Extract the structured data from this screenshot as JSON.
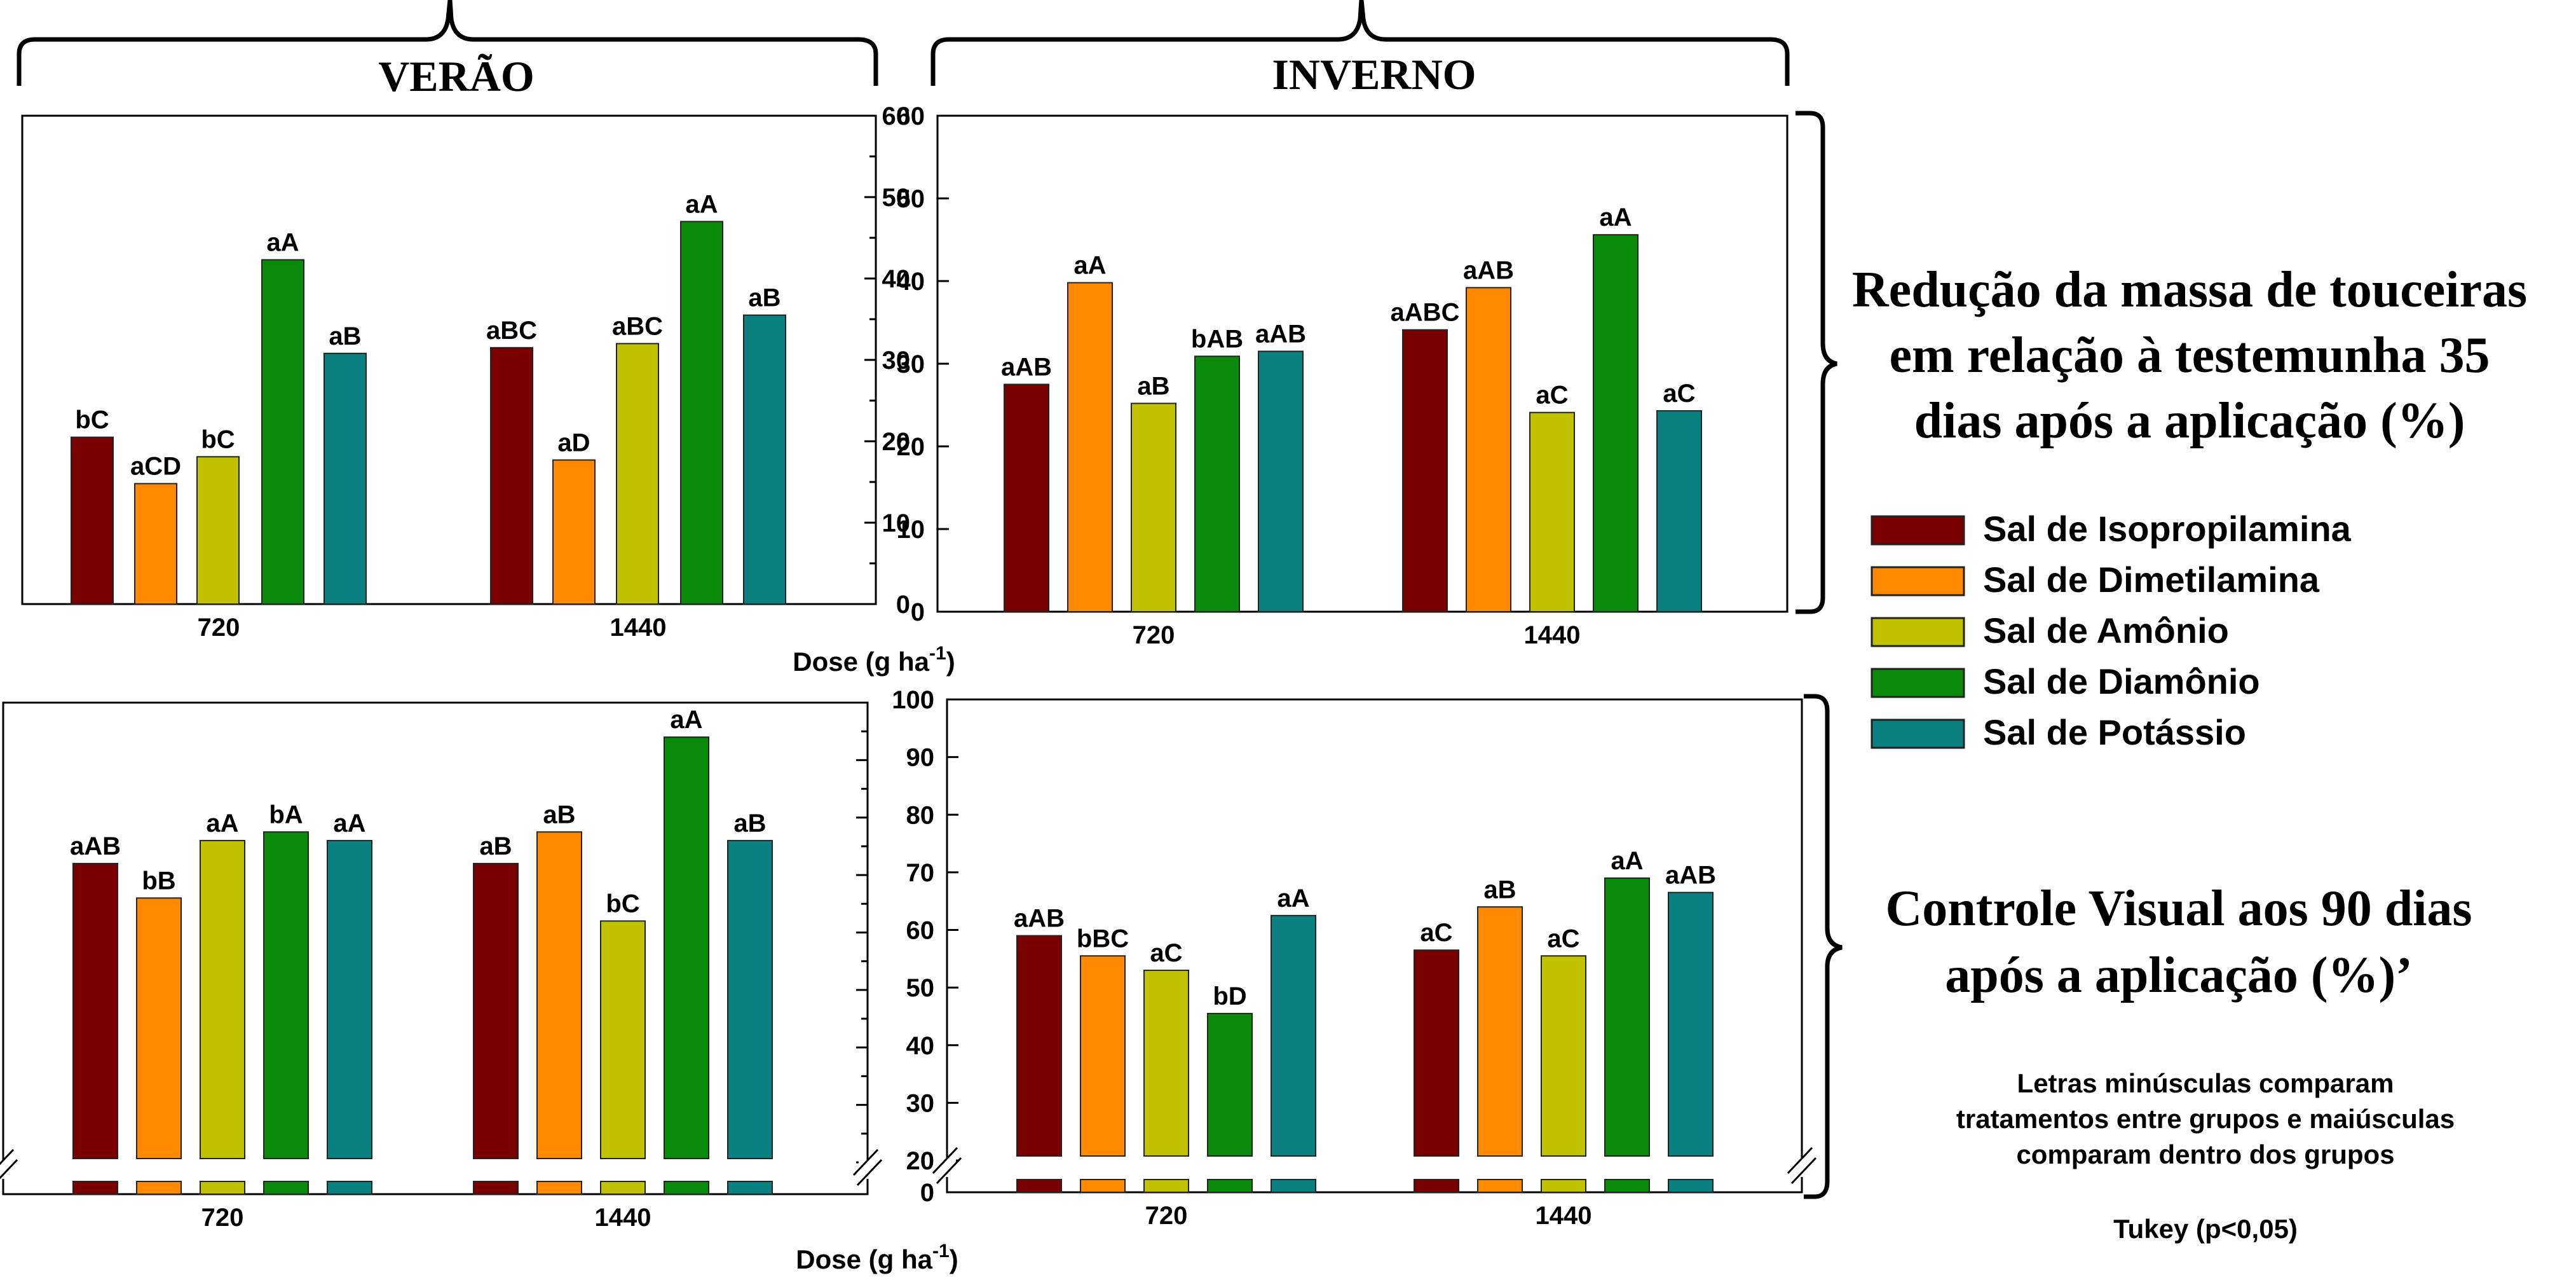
{
  "headers": {
    "verao": "VERÃO",
    "inverno": "INVERNO"
  },
  "side_labels": {
    "top": [
      "Redução da massa de touceiras",
      "em relação à testemunha 35",
      "dias após a aplicação (%)"
    ],
    "bottom": [
      "Controle Visual aos 90 dias",
      "após a aplicação (%)’"
    ]
  },
  "legend": {
    "items": [
      {
        "label": "Sal de Isopropilamina",
        "color": "#7a0000"
      },
      {
        "label": "Sal de Dimetilamina",
        "color": "#ff8a00"
      },
      {
        "label": "Sal de Amônio",
        "color": "#c0c200"
      },
      {
        "label": "Sal de Diamônio",
        "color": "#0a8a0a"
      },
      {
        "label": "Sal de Potássio",
        "color": "#0a8080"
      }
    ]
  },
  "notes": {
    "lines": [
      "Letras minúsculas comparam",
      "tratamentos entre grupos e maiúsculas",
      "comparam dentro dos grupos"
    ],
    "test": "Tukey (p<0,05)"
  },
  "xlabel": {
    "text": "Dose (g ha",
    "sup": "-1",
    "close": ")"
  },
  "chart_data": [
    {
      "id": "top-verao",
      "type": "bar",
      "title": "",
      "season": "VERÃO",
      "categories": [
        "720",
        "1440"
      ],
      "ylim": [
        0,
        60
      ],
      "yticks": [
        0,
        10,
        20,
        30,
        40,
        50,
        60
      ],
      "series": [
        {
          "name": "Sal de Isopropilamina",
          "values": [
            20.5,
            31.5
          ],
          "letters": [
            "bC",
            "aBC"
          ]
        },
        {
          "name": "Sal de Dimetilamina",
          "values": [
            14.8,
            17.7
          ],
          "letters": [
            "aCD",
            "aD"
          ]
        },
        {
          "name": "Sal de Amônio",
          "values": [
            18.1,
            32.0
          ],
          "letters": [
            "bC",
            "aBC"
          ]
        },
        {
          "name": "Sal de Diamônio",
          "values": [
            42.3,
            47.0
          ],
          "letters": [
            "aA",
            "aA"
          ]
        },
        {
          "name": "Sal de Potássio",
          "values": [
            30.8,
            35.5
          ],
          "letters": [
            "aB",
            "aB"
          ]
        }
      ]
    },
    {
      "id": "top-inverno",
      "type": "bar",
      "title": "",
      "season": "INVERNO",
      "categories": [
        "720",
        "1440"
      ],
      "ylim": [
        0,
        60
      ],
      "yticks": [
        0,
        10,
        20,
        30,
        40,
        50,
        60
      ],
      "series": [
        {
          "name": "Sal de Isopropilamina",
          "values": [
            27.5,
            34.1
          ],
          "letters": [
            "aAB",
            "aABC"
          ]
        },
        {
          "name": "Sal de Dimetilamina",
          "values": [
            39.8,
            39.2
          ],
          "letters": [
            "aA",
            "aAB"
          ]
        },
        {
          "name": "Sal de Amônio",
          "values": [
            25.2,
            24.1
          ],
          "letters": [
            "aB",
            "aC"
          ]
        },
        {
          "name": "Sal de Diamônio",
          "values": [
            30.9,
            45.6
          ],
          "letters": [
            "bAB",
            "aA"
          ]
        },
        {
          "name": "Sal de Potássio",
          "values": [
            31.5,
            24.3
          ],
          "letters": [
            "aAB",
            "aC"
          ]
        }
      ]
    },
    {
      "id": "bottom-verao",
      "type": "bar",
      "title": "",
      "season": "VERÃO",
      "categories": [
        "720",
        "1440"
      ],
      "ylim": [
        0,
        100
      ],
      "axis_break": [
        0,
        20
      ],
      "yticks": [
        0,
        20,
        30,
        40,
        50,
        60,
        70,
        80,
        90,
        100
      ],
      "series": [
        {
          "name": "Sal de Isopropilamina",
          "values": [
            72.0,
            72.0
          ],
          "letters": [
            "aAB",
            "aB"
          ]
        },
        {
          "name": "Sal de Dimetilamina",
          "values": [
            66.0,
            77.5
          ],
          "letters": [
            "bB",
            "aB"
          ]
        },
        {
          "name": "Sal de Amônio",
          "values": [
            76.0,
            62.0
          ],
          "letters": [
            "aA",
            "bC"
          ]
        },
        {
          "name": "Sal de Diamônio",
          "values": [
            77.5,
            94.0
          ],
          "letters": [
            "bA",
            "aA"
          ]
        },
        {
          "name": "Sal de Potássio",
          "values": [
            76.0,
            76.0
          ],
          "letters": [
            "aA",
            "aB"
          ]
        }
      ]
    },
    {
      "id": "bottom-inverno",
      "type": "bar",
      "title": "",
      "season": "INVERNO",
      "categories": [
        "720",
        "1440"
      ],
      "ylim": [
        0,
        100
      ],
      "axis_break": [
        0,
        20
      ],
      "yticks": [
        0,
        20,
        30,
        40,
        50,
        60,
        70,
        80,
        90,
        100
      ],
      "series": [
        {
          "name": "Sal de Isopropilamina",
          "values": [
            59.0,
            56.5
          ],
          "letters": [
            "aAB",
            "aC"
          ]
        },
        {
          "name": "Sal de Dimetilamina",
          "values": [
            55.5,
            64.0
          ],
          "letters": [
            "bBC",
            "aB"
          ]
        },
        {
          "name": "Sal de Amônio",
          "values": [
            53.0,
            55.5
          ],
          "letters": [
            "aC",
            "aC"
          ]
        },
        {
          "name": "Sal de Diamônio",
          "values": [
            45.5,
            69.0
          ],
          "letters": [
            "bD",
            "aA"
          ]
        },
        {
          "name": "Sal de Potássio",
          "values": [
            62.5,
            66.5
          ],
          "letters": [
            "aA",
            "aAB"
          ]
        }
      ]
    }
  ]
}
